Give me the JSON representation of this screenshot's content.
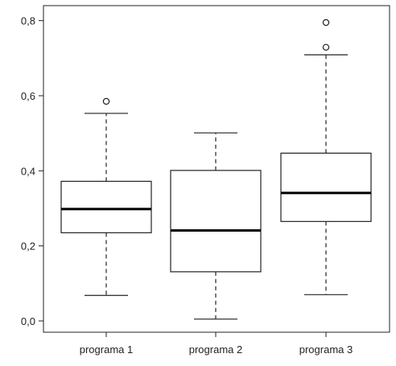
{
  "chart_data": {
    "type": "boxplot",
    "title": "",
    "xlabel": "",
    "ylabel": "",
    "ylim": [
      -0.03,
      0.84
    ],
    "y_ticks": [
      0.0,
      0.2,
      0.4,
      0.6,
      0.8
    ],
    "y_tick_labels": [
      "0,0",
      "0,2",
      "0,4",
      "0,6",
      "0,8"
    ],
    "categories": [
      "programa 1",
      "programa 2",
      "programa 3"
    ],
    "boxes": [
      {
        "category": "programa 1",
        "whisker_low": 0.068,
        "q1": 0.235,
        "median": 0.298,
        "q3": 0.372,
        "whisker_high": 0.553,
        "outliers": [
          0.585
        ]
      },
      {
        "category": "programa 2",
        "whisker_low": 0.005,
        "q1": 0.131,
        "median": 0.241,
        "q3": 0.401,
        "whisker_high": 0.501,
        "outliers": []
      },
      {
        "category": "programa 3",
        "whisker_low": 0.07,
        "q1": 0.265,
        "median": 0.341,
        "q3": 0.447,
        "whisker_high": 0.709,
        "outliers": [
          0.729,
          0.795
        ]
      }
    ],
    "grid": false,
    "colors": {
      "line": "#000000",
      "background": "#ffffff"
    }
  }
}
